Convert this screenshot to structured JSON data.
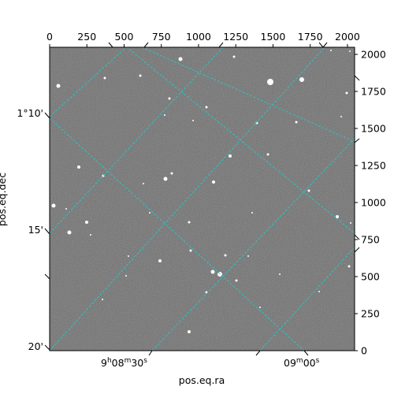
{
  "figure": {
    "x_axis_title": "pos.eq.ra",
    "y_axis_title": "pos.eq.dec",
    "pixel_axes": {
      "top_ticks": [
        "0",
        "250",
        "500",
        "750",
        "1000",
        "1250",
        "1500",
        "1750",
        "2000"
      ],
      "right_ticks": [
        "0",
        "250",
        "500",
        "750",
        "1000",
        "1250",
        "1500",
        "1750",
        "2000"
      ]
    },
    "world_axes": {
      "ra_ticks": [
        {
          "text": "9",
          "hour": "h",
          "mid": "08",
          "min": "m",
          "sec_val": "30",
          "sec": "s"
        },
        {
          "text": "09",
          "hour": "",
          "mid": "",
          "min": "m",
          "sec_val": "00",
          "sec": "s"
        }
      ],
      "dec_ticks": [
        "1°10'",
        "15'",
        "20'"
      ]
    },
    "colors": {
      "grid": "#22c8c8",
      "background": "#7a7a7a",
      "star": "#ffffff"
    }
  }
}
